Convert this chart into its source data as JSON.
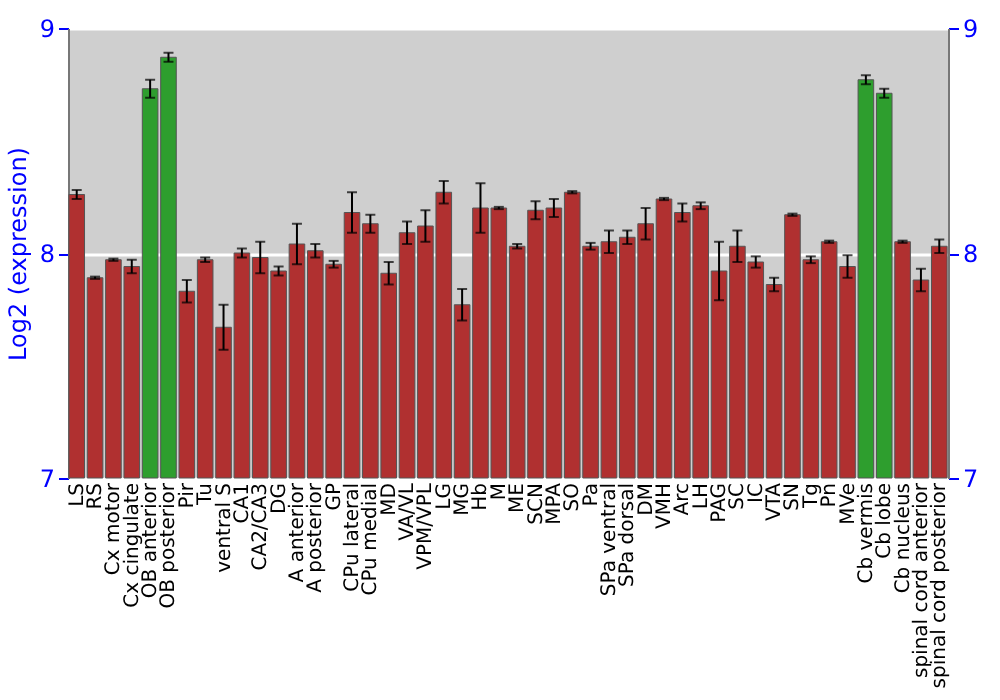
{
  "chart_data": {
    "type": "bar",
    "ylabel": "Log2 (expression)",
    "categories": [
      "LS",
      "RS",
      "Cx motor",
      "Cx cingulate",
      "OB anterior",
      "OB posterior",
      "Pir",
      "Tu",
      "ventral S",
      "CA1",
      "CA2/CA3",
      "DG",
      "A anterior",
      "A posterior",
      "GP",
      "CPu lateral",
      "CPu medial",
      "MD",
      "VA/VL",
      "VPM/VPL",
      "LG",
      "MG",
      "Hb",
      "M",
      "ME",
      "SCN",
      "MPA",
      "SO",
      "Pa",
      "SPa ventral",
      "SPa dorsal",
      "DM",
      "VMH",
      "Arc",
      "LH",
      "PAG",
      "SC",
      "IC",
      "VTA",
      "SN",
      "Tg",
      "Pn",
      "MVe",
      "Cb vermis",
      "Cb lobe",
      "Cb nucleus",
      "spinal cord anterior",
      "spinal cord posterior"
    ],
    "values": [
      8.26,
      7.89,
      7.97,
      7.94,
      8.73,
      8.87,
      7.83,
      7.97,
      7.67,
      8.0,
      7.98,
      7.92,
      8.04,
      8.01,
      7.95,
      8.18,
      8.13,
      7.91,
      8.09,
      8.12,
      8.27,
      7.77,
      8.2,
      8.2,
      8.03,
      8.19,
      8.2,
      8.27,
      8.03,
      8.05,
      8.07,
      8.13,
      8.24,
      8.18,
      8.21,
      7.92,
      8.03,
      7.96,
      7.86,
      8.17,
      7.97,
      8.05,
      7.94,
      8.77,
      8.71,
      8.05,
      7.88,
      8.03
    ],
    "errors": [
      0.02,
      0.005,
      0.005,
      0.03,
      0.04,
      0.02,
      0.05,
      0.01,
      0.1,
      0.02,
      0.07,
      0.02,
      0.09,
      0.03,
      0.015,
      0.09,
      0.04,
      0.05,
      0.05,
      0.07,
      0.05,
      0.07,
      0.11,
      0.005,
      0.01,
      0.04,
      0.04,
      0.005,
      0.015,
      0.05,
      0.03,
      0.07,
      0.005,
      0.04,
      0.015,
      0.13,
      0.07,
      0.025,
      0.03,
      0.005,
      0.015,
      0.005,
      0.05,
      0.02,
      0.02,
      0.005,
      0.05,
      0.03
    ],
    "colors": [
      "#b03030",
      "#b03030",
      "#b03030",
      "#b03030",
      "#2e9e2e",
      "#2e9e2e",
      "#b03030",
      "#b03030",
      "#b03030",
      "#b03030",
      "#b03030",
      "#b03030",
      "#b03030",
      "#b03030",
      "#b03030",
      "#b03030",
      "#b03030",
      "#b03030",
      "#b03030",
      "#b03030",
      "#b03030",
      "#b03030",
      "#b03030",
      "#b03030",
      "#b03030",
      "#b03030",
      "#b03030",
      "#b03030",
      "#b03030",
      "#b03030",
      "#b03030",
      "#b03030",
      "#b03030",
      "#b03030",
      "#b03030",
      "#b03030",
      "#b03030",
      "#b03030",
      "#b03030",
      "#b03030",
      "#b03030",
      "#b03030",
      "#b03030",
      "#2e9e2e",
      "#2e9e2e",
      "#b03030",
      "#b03030",
      "#b03030"
    ],
    "ylim": [
      7,
      9
    ],
    "yticks": [
      7,
      8,
      9
    ],
    "y2lim": [
      7,
      9
    ],
    "y2ticks": [
      7,
      8,
      9
    ],
    "grid": "y"
  }
}
